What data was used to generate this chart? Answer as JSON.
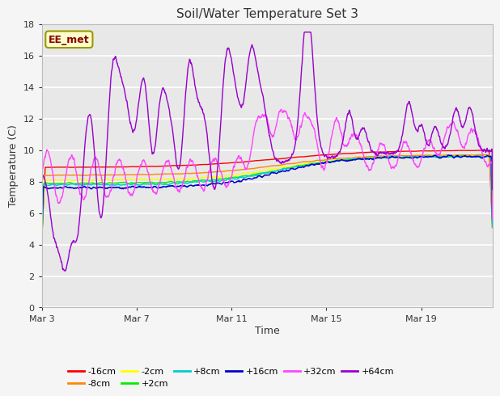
{
  "title": "Soil/Water Temperature Set 3",
  "xlabel": "Time",
  "ylabel": "Temperature (C)",
  "ylim": [
    0,
    18
  ],
  "yticks": [
    0,
    2,
    4,
    6,
    8,
    10,
    12,
    14,
    16,
    18
  ],
  "xtick_labels": [
    "Mar 3",
    "Mar 7",
    "Mar 11",
    "Mar 15",
    "Mar 19"
  ],
  "xtick_positions": [
    0,
    4,
    8,
    12,
    16
  ],
  "total_days": 19,
  "plot_bg_color": "#e8e8e8",
  "fig_bg_color": "#f5f5f5",
  "annotation_text": "EE_met",
  "annotation_box_color": "#ffffcc",
  "annotation_border_color": "#999900",
  "annotation_text_color": "#880000",
  "grid_color": "#ffffff",
  "series_colors": {
    "-16cm": "#ff0000",
    "-8cm": "#ff8800",
    "-2cm": "#ffff00",
    "+2cm": "#00ee00",
    "+8cm": "#00cccc",
    "+16cm": "#0000cc",
    "+32cm": "#ff44ff",
    "+64cm": "#9900cc"
  },
  "legend_order": [
    "-16cm",
    "-8cm",
    "-2cm",
    "+2cm",
    "+8cm",
    "+16cm",
    "+32cm",
    "+64cm"
  ]
}
